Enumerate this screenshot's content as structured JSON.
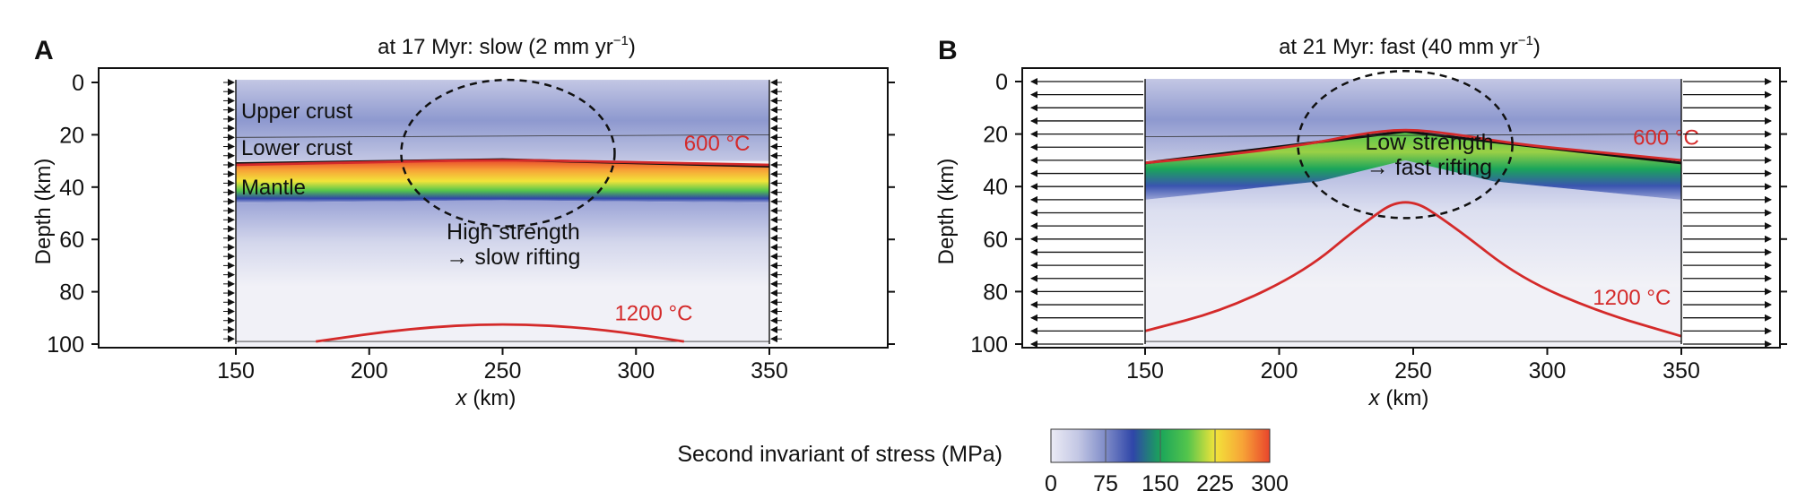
{
  "colors": {
    "red_isotherm": "#d42a2a",
    "colormap": [
      "#ebebf5",
      "#c3c7e4",
      "#7e8bc8",
      "#2f46a8",
      "#1aa55a",
      "#54c54c",
      "#f2e43a",
      "#f7a437",
      "#e9452c"
    ]
  },
  "chart_data": [
    {
      "type": "heatmap",
      "panel_label": "A",
      "title": "at 17 Myr: slow (2 mm yr",
      "title_sup": "−1",
      "title_close": ")",
      "xlabel": "x (km)",
      "ylabel": "Depth (km)",
      "xlim": [
        110,
        390
      ],
      "ylim": [
        100,
        -2
      ],
      "x_ticks": [
        150,
        200,
        250,
        300,
        350
      ],
      "y_ticks": [
        0,
        20,
        40,
        60,
        80,
        100
      ],
      "model_x_range": [
        150,
        350
      ],
      "boundary_arrows": "inward",
      "layer_labels": [
        {
          "text": "Upper crust",
          "x": 152,
          "depth": 11
        },
        {
          "text": "Lower crust",
          "x": 152,
          "depth": 25
        },
        {
          "text": "Mantle",
          "x": 152,
          "depth": 40
        }
      ],
      "isotherms": [
        {
          "label": "600 °C",
          "label_x": 318,
          "label_depth": 26,
          "x": [
            150,
            200,
            250,
            300,
            350
          ],
          "depth": [
            31.5,
            30.5,
            29.5,
            30.5,
            31.5
          ]
        },
        {
          "label": "1200 °C",
          "label_x": 292,
          "label_depth": 91,
          "x": [
            180,
            215,
            250,
            285,
            318
          ],
          "depth": [
            99,
            94,
            92,
            94,
            99
          ]
        }
      ],
      "strong_layer": {
        "top_x": [
          150,
          250,
          350
        ],
        "top_depth": [
          31,
          29.5,
          32
        ],
        "bottom_x": [
          150,
          250,
          350
        ],
        "bottom_depth": [
          46,
          45,
          46
        ]
      },
      "region_ellipse": {
        "cx": 252,
        "cy": 27,
        "rx": 40,
        "ry": 28
      },
      "annotation": {
        "line1": "High strength",
        "line2": "→ slow rifting",
        "x": 254,
        "depth": 60
      }
    },
    {
      "type": "heatmap",
      "panel_label": "B",
      "title": "at 21 Myr: fast (40 mm yr",
      "title_sup": "−1",
      "title_close": ")",
      "xlabel": "x (km)",
      "ylabel": "Depth (km)",
      "xlim": [
        110,
        385
      ],
      "ylim": [
        100,
        -2
      ],
      "x_ticks": [
        150,
        200,
        250,
        300,
        350
      ],
      "y_ticks": [
        0,
        20,
        40,
        60,
        80,
        100
      ],
      "model_x_range": [
        150,
        350
      ],
      "boundary_arrows": "outward",
      "isotherms": [
        {
          "label": "600 °C",
          "label_x": 332,
          "label_depth": 24,
          "x": [
            150,
            180,
            210,
            230,
            247,
            265,
            290,
            320,
            350
          ],
          "depth": [
            31,
            28,
            24,
            20,
            18,
            20,
            24,
            27,
            30
          ]
        },
        {
          "label": "1200 °C",
          "label_x": 317,
          "label_depth": 85,
          "x": [
            150,
            180,
            210,
            230,
            247,
            265,
            290,
            320,
            350
          ],
          "depth": [
            95,
            87,
            72,
            55,
            43,
            55,
            75,
            88,
            97
          ]
        }
      ],
      "strong_layer": {
        "top_x": [
          150,
          215,
          247,
          280,
          350
        ],
        "top_depth": [
          31,
          23,
          19,
          23,
          31
        ],
        "bottom_x": [
          150,
          215,
          247,
          280,
          350
        ],
        "bottom_depth": [
          45,
          38,
          30,
          38,
          45
        ]
      },
      "region_ellipse": {
        "cx": 247,
        "cy": 24,
        "rx": 40,
        "ry": 28
      },
      "annotation": {
        "line1": "Low strength",
        "line2": "→ fast rifting",
        "x": 256,
        "depth": 26
      }
    }
  ],
  "colorbar": {
    "label": "Second invariant of stress (MPa)",
    "ticks": [
      "0",
      "75",
      "150",
      "225",
      "300"
    ],
    "min": 0,
    "max": 300
  }
}
